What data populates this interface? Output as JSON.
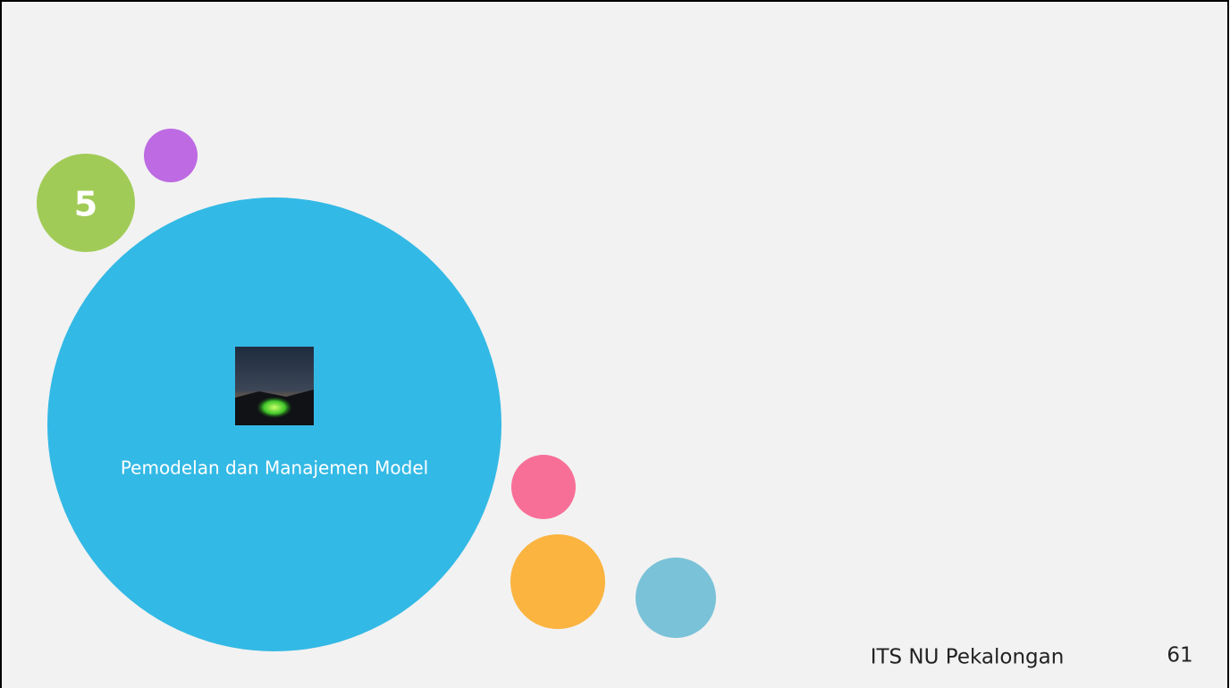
{
  "slide": {
    "section_number": 5,
    "title": "Pemodelan dan Manajemen Model",
    "footer": "ITS NU Pekalongan",
    "page_number": 61
  }
}
